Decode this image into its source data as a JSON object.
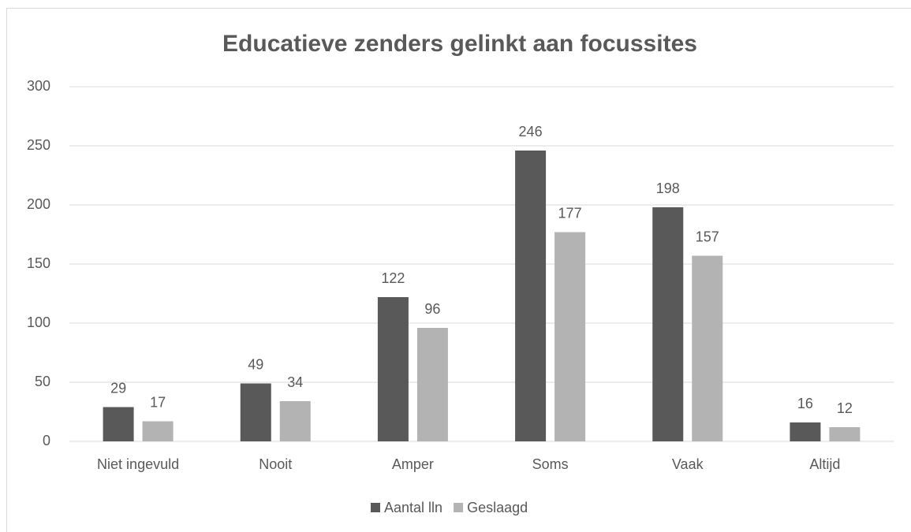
{
  "chart_data": {
    "type": "bar",
    "title": "Educatieve zenders gelinkt aan focussites",
    "categories": [
      "Niet ingevuld",
      "Nooit",
      "Amper",
      "Soms",
      "Vaak",
      "Altijd"
    ],
    "series": [
      {
        "name": "Aantal lln",
        "color": "#595959",
        "values": [
          29,
          49,
          122,
          246,
          198,
          16
        ]
      },
      {
        "name": "Geslaagd",
        "color": "#b3b3b3",
        "values": [
          17,
          34,
          96,
          177,
          157,
          12
        ]
      }
    ],
    "ylim": [
      0,
      300
    ],
    "yticks": [
      0,
      50,
      100,
      150,
      200,
      250,
      300
    ],
    "grid": true,
    "legend": "bottom"
  }
}
